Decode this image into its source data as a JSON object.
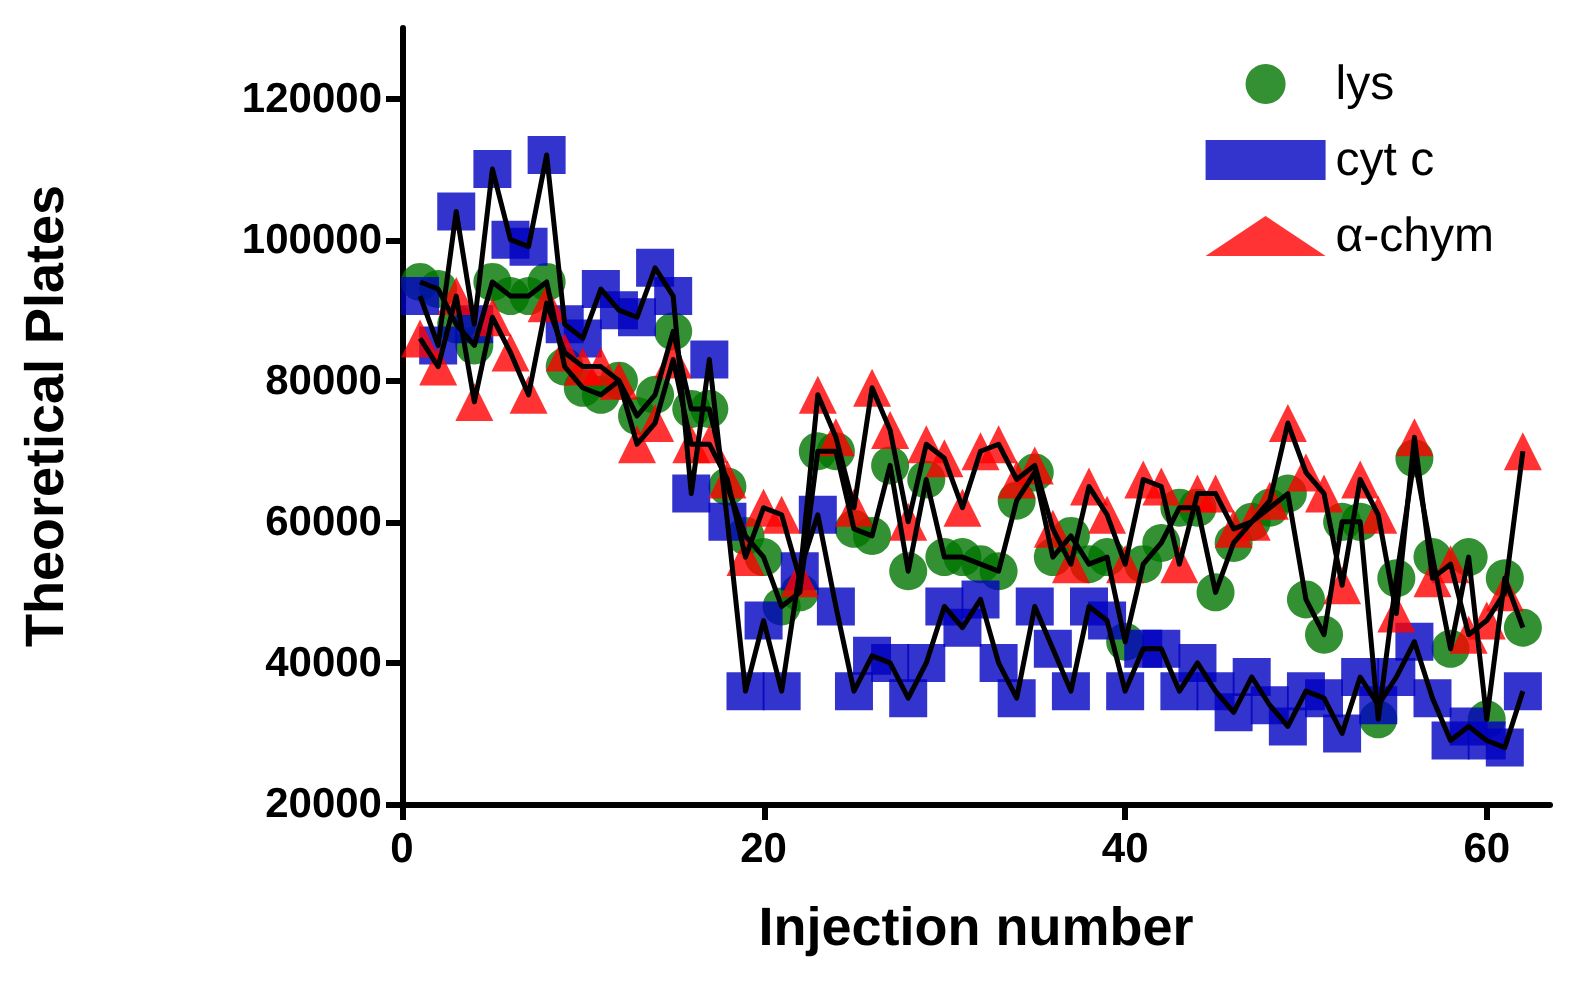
{
  "chart_data": {
    "type": "line",
    "xlabel": "Injection number",
    "ylabel": "Theoretical Plates",
    "x": [
      1,
      2,
      3,
      4,
      5,
      6,
      7,
      8,
      9,
      10,
      11,
      12,
      13,
      14,
      15,
      16,
      17,
      18,
      19,
      20,
      21,
      22,
      23,
      24,
      25,
      26,
      27,
      28,
      29,
      30,
      31,
      32,
      33,
      34,
      35,
      36,
      37,
      38,
      39,
      40,
      41,
      42,
      43,
      44,
      45,
      46,
      47,
      48,
      49,
      50,
      51,
      52,
      53,
      54,
      55,
      56,
      57,
      58,
      59,
      60,
      61,
      62
    ],
    "series": [
      {
        "name": "lys",
        "color": "#007500",
        "marker": "circle",
        "values": [
          94000,
          93000,
          88000,
          85000,
          94000,
          92000,
          92000,
          94000,
          82000,
          79000,
          78000,
          80000,
          75000,
          78000,
          87000,
          76000,
          76000,
          65000,
          58000,
          55000,
          48000,
          50000,
          70000,
          70000,
          59000,
          58000,
          68000,
          53000,
          66000,
          55000,
          55000,
          54000,
          53000,
          63000,
          67000,
          55000,
          58000,
          54000,
          55000,
          43000,
          54000,
          57000,
          62000,
          62000,
          50000,
          57000,
          60000,
          62000,
          64000,
          49000,
          44000,
          60000,
          60000,
          32000,
          52000,
          69000,
          55000,
          42000,
          55000,
          32000,
          52000,
          45000
        ]
      },
      {
        "name": "cyt c",
        "color": "#0000c0",
        "marker": "square",
        "values": [
          92000,
          85000,
          104000,
          88000,
          110000,
          100000,
          99000,
          112000,
          88000,
          86000,
          93000,
          90000,
          89000,
          96000,
          92000,
          64000,
          83000,
          60000,
          36000,
          46000,
          36000,
          53000,
          61000,
          48000,
          36000,
          41000,
          40000,
          35000,
          40000,
          48000,
          45000,
          49000,
          40000,
          35000,
          48000,
          42000,
          36000,
          48000,
          46000,
          36000,
          42000,
          42000,
          36000,
          40000,
          36000,
          33000,
          38000,
          34000,
          31000,
          36000,
          35000,
          30000,
          38000,
          34000,
          38000,
          43000,
          35000,
          29000,
          31000,
          29000,
          28000,
          36000
        ]
      },
      {
        "name": "α-chym",
        "color": "#ff0000",
        "marker": "triangle",
        "values": [
          86000,
          82000,
          92000,
          77000,
          89000,
          84000,
          78000,
          91000,
          84000,
          82000,
          82000,
          80000,
          71000,
          74000,
          83000,
          71000,
          71000,
          66000,
          55000,
          62000,
          61000,
          52000,
          78000,
          72000,
          62000,
          79000,
          73000,
          60000,
          71000,
          69000,
          62000,
          70000,
          71000,
          66000,
          68000,
          59000,
          54000,
          65000,
          61000,
          54000,
          66000,
          65000,
          54000,
          64000,
          64000,
          59000,
          60000,
          63000,
          74000,
          67000,
          64000,
          51000,
          66000,
          61000,
          47000,
          72000,
          52000,
          54000,
          44000,
          46000,
          50000,
          70000
        ]
      }
    ],
    "xlim": [
      0,
      63.5
    ],
    "xticks": [
      0,
      20,
      40,
      60
    ],
    "ylim": [
      20000,
      130000
    ],
    "yticks": [
      20000,
      40000,
      60000,
      80000,
      100000,
      120000
    ],
    "grid": false,
    "legend": "top right",
    "line_style": "solid"
  }
}
